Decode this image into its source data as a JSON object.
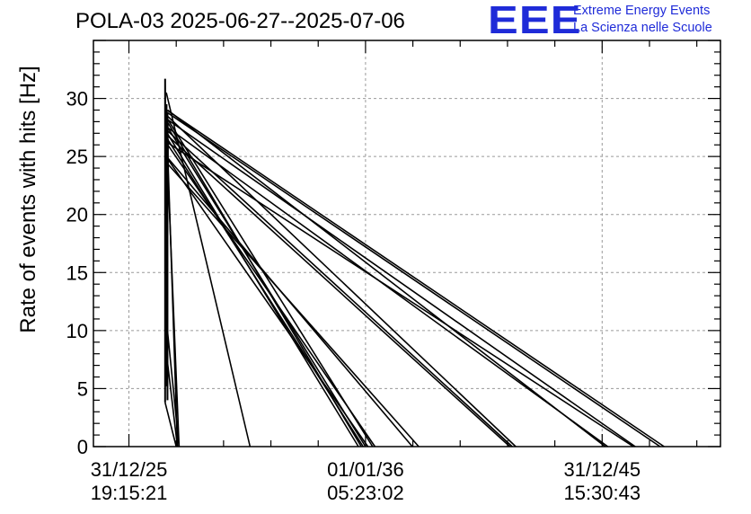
{
  "title": "POLA-03 2025-06-27--2025-07-06",
  "logo": {
    "mark": "EEE",
    "line1": "Extreme Energy Events",
    "line2": "La Scienza nelle Scuole",
    "color": "#1f2bd8"
  },
  "chart_data": {
    "type": "line",
    "title": "POLA-03 2025-06-27--2025-07-06",
    "xlabel": "",
    "ylabel": "Rate of events with hits [Hz]",
    "ylim": [
      0,
      35
    ],
    "xlim": [
      -0.15,
      2.5
    ],
    "grid": true,
    "line_color": "#000000",
    "x_tick_positions": [
      0,
      1,
      2
    ],
    "x_tick_labels": [
      [
        "31/12/25",
        "19:15:21"
      ],
      [
        "01/01/36",
        "05:23:02"
      ],
      [
        "31/12/45",
        "15:30:43"
      ]
    ],
    "y_ticks": [
      0,
      5,
      10,
      15,
      20,
      25,
      30
    ],
    "vertical_trace": [
      [
        0.153,
        3.8
      ],
      [
        0.153,
        31.7
      ],
      [
        0.159,
        5.2
      ],
      [
        0.159,
        29.5
      ],
      [
        0.161,
        22.0
      ],
      [
        0.163,
        4.0
      ],
      [
        0.163,
        28.8
      ],
      [
        0.161,
        13.0
      ],
      [
        0.165,
        26.5
      ],
      [
        0.162,
        15.5
      ],
      [
        0.164,
        27.8
      ]
    ],
    "drops": [
      [
        [
          0.153,
          3.8
        ],
        [
          0.2,
          0
        ]
      ],
      [
        [
          0.156,
          8.5
        ],
        [
          0.205,
          0
        ]
      ],
      [
        [
          0.158,
          11.0
        ],
        [
          0.212,
          0
        ]
      ],
      [
        [
          0.159,
          28.5
        ],
        [
          0.205,
          0
        ]
      ],
      [
        [
          0.16,
          26.0
        ],
        [
          0.212,
          0
        ]
      ],
      [
        [
          0.158,
          30.5
        ],
        [
          0.512,
          0
        ]
      ],
      [
        [
          0.162,
          27.0
        ],
        [
          0.97,
          0
        ]
      ],
      [
        [
          0.162,
          28.0
        ],
        [
          0.982,
          0
        ]
      ],
      [
        [
          0.163,
          26.5
        ],
        [
          0.99,
          0
        ]
      ],
      [
        [
          0.164,
          27.5
        ],
        [
          1.0,
          0
        ]
      ],
      [
        [
          0.163,
          24.8
        ],
        [
          1.01,
          0
        ]
      ],
      [
        [
          0.164,
          28.2
        ],
        [
          1.03,
          0
        ]
      ],
      [
        [
          0.164,
          26.0
        ],
        [
          1.04,
          0
        ]
      ],
      [
        [
          0.159,
          25.0
        ],
        [
          1.198,
          0
        ]
      ],
      [
        [
          0.158,
          24.5
        ],
        [
          1.225,
          0
        ]
      ],
      [
        [
          0.163,
          26.8
        ],
        [
          1.61,
          0
        ]
      ],
      [
        [
          0.164,
          27.2
        ],
        [
          1.62,
          0
        ]
      ],
      [
        [
          0.162,
          28.5
        ],
        [
          1.635,
          0
        ]
      ],
      [
        [
          0.164,
          29.0
        ],
        [
          2.013,
          0
        ]
      ],
      [
        [
          0.163,
          27.5
        ],
        [
          2.024,
          0
        ]
      ],
      [
        [
          0.163,
          26.2
        ],
        [
          2.132,
          0
        ]
      ],
      [
        [
          0.162,
          28.2
        ],
        [
          2.14,
          0
        ]
      ],
      [
        [
          0.161,
          28.8
        ],
        [
          2.245,
          0
        ]
      ],
      [
        [
          0.16,
          29.0
        ],
        [
          2.262,
          0
        ]
      ]
    ]
  }
}
